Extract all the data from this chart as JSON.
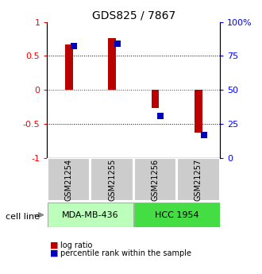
{
  "title": "GDS825 / 7867",
  "samples": [
    "GSM21254",
    "GSM21255",
    "GSM21256",
    "GSM21257"
  ],
  "log_ratios": [
    0.67,
    0.76,
    -0.27,
    -0.63
  ],
  "percentile_ranks": [
    0.82,
    0.84,
    0.31,
    0.17
  ],
  "bar_color": "#bb0000",
  "dot_color": "#0000bb",
  "bar_width": 0.18,
  "dot_size": 35,
  "ylim_left": [
    -1,
    1
  ],
  "ylim_right": [
    0,
    100
  ],
  "yticks_left": [
    -1,
    -0.5,
    0,
    0.5,
    1
  ],
  "yticks_left_labels": [
    "-1",
    "-0.5",
    "0",
    "0.5",
    "1"
  ],
  "yticks_right": [
    0,
    25,
    50,
    75,
    100
  ],
  "yticks_right_labels": [
    "0",
    "25",
    "50",
    "75",
    "100%"
  ],
  "hline_vals": [
    -0.5,
    0,
    0.5
  ],
  "zero_line_color": "#cc0000",
  "black_line_color": "#000000",
  "cell_lines": [
    "MDA-MB-436",
    "HCC 1954"
  ],
  "cell_line_colors": [
    "#bbffbb",
    "#44dd44"
  ],
  "gsm_box_color": "#cccccc",
  "gsm_box_edge": "#ffffff",
  "cell_line_label": "cell line",
  "legend_items": [
    "log ratio",
    "percentile rank within the sample"
  ],
  "title_fontsize": 10,
  "axis_fontsize": 8,
  "gsm_fontsize": 7,
  "cell_line_fontsize": 8,
  "legend_fontsize": 7
}
